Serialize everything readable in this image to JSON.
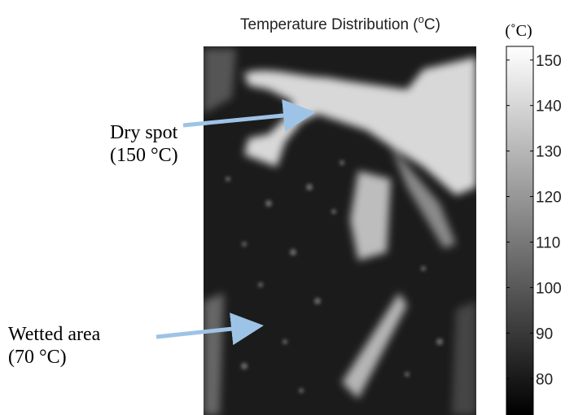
{
  "figure": {
    "title": {
      "prefix": "Temperature Distribution (",
      "superscript": "o",
      "suffix": "C)"
    },
    "colorbar": {
      "unit": "(˚C)",
      "lim": [
        72,
        153
      ],
      "ticks": [
        80,
        90,
        100,
        110,
        120,
        130,
        140,
        150
      ]
    },
    "annotations": [
      {
        "label": "Dry spot",
        "value_label": "(150 °C)"
      },
      {
        "label": "Wetted area",
        "value_label": "(70 °C)"
      }
    ]
  }
}
